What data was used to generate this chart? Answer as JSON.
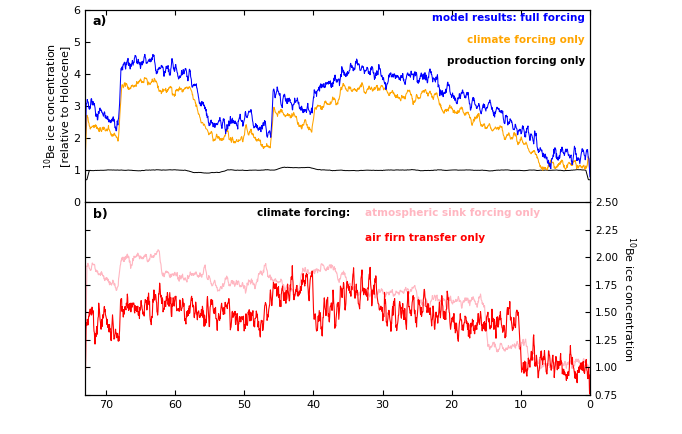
{
  "title_a": "a)",
  "title_b": "b)",
  "ylabel_a": "$^{10}$Be ice concentration\n[relative to Holocene]",
  "ylabel_b": "$^{10}$Be ice concentration",
  "xlim": [
    73,
    0
  ],
  "ylim_a": [
    0,
    6
  ],
  "ylim_b": [
    0.75,
    2.5
  ],
  "yticks_a": [
    0,
    1,
    2,
    3,
    4,
    5,
    6
  ],
  "yticks_b": [
    0.75,
    1.0,
    1.25,
    1.5,
    1.75,
    2.0,
    2.25,
    2.5
  ],
  "ytick_b_labels": [
    "0.75",
    "1.00",
    "1.25",
    "1.50",
    "1.75",
    "2.00",
    "2.25",
    "2.50"
  ],
  "xticks": [
    70,
    60,
    50,
    40,
    30,
    20,
    10,
    0
  ],
  "color_blue": "#0000FF",
  "color_orange": "#FFA500",
  "color_black": "#000000",
  "color_red": "#FF0000",
  "color_pink": "#FFB6C1",
  "legend_a_1": "model results: full forcing",
  "legend_a_2": "climate forcing only",
  "legend_a_3": "production forcing only",
  "legend_b_black": "climate forcing: ",
  "legend_b_pink": "atmospheric sink forcing only",
  "legend_b_red": "air firn transfer only",
  "seed": 42
}
